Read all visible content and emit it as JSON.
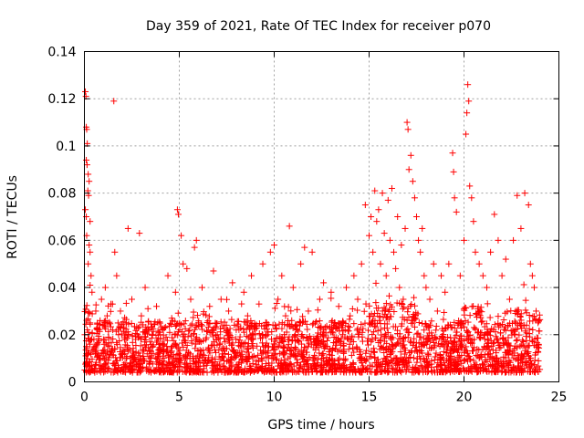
{
  "chart_data": {
    "type": "scatter",
    "title": "Day 359 of 2021, Rate Of TEC Index for receiver p070",
    "xlabel": "GPS time / hours",
    "ylabel": "ROTI / TECUs",
    "xlim": [
      0,
      25
    ],
    "ylim": [
      0,
      0.14
    ],
    "xticks": [
      0,
      5,
      10,
      15,
      20,
      25
    ],
    "xtick_labels": [
      "0",
      "5",
      "10",
      "15",
      "20",
      "25"
    ],
    "yticks": [
      0,
      0.02,
      0.04,
      0.06,
      0.08,
      0.1,
      0.12,
      0.14
    ],
    "ytick_labels": [
      "0",
      "0.02",
      "0.04",
      "0.06",
      "0.08",
      "0.1",
      "0.12",
      "0.14"
    ],
    "grid": true,
    "marker": "+",
    "color": "#ff0000",
    "series": [
      {
        "name": "ROTI",
        "points": [
          [
            0.05,
            0.123
          ],
          [
            0.08,
            0.121
          ],
          [
            0.1,
            0.108
          ],
          [
            0.12,
            0.107
          ],
          [
            0.15,
            0.101
          ],
          [
            0.1,
            0.094
          ],
          [
            0.14,
            0.092
          ],
          [
            0.2,
            0.088
          ],
          [
            0.25,
            0.085
          ],
          [
            0.18,
            0.081
          ],
          [
            0.22,
            0.079
          ],
          [
            0.05,
            0.073
          ],
          [
            0.1,
            0.07
          ],
          [
            0.3,
            0.068
          ],
          [
            0.12,
            0.062
          ],
          [
            0.25,
            0.058
          ],
          [
            0.3,
            0.055
          ],
          [
            0.2,
            0.05
          ],
          [
            0.35,
            0.045
          ],
          [
            0.3,
            0.041
          ],
          [
            0.4,
            0.038
          ],
          [
            0.02,
            0.02
          ],
          [
            0.1,
            0.015
          ],
          [
            0.2,
            0.012
          ],
          [
            0.3,
            0.025
          ],
          [
            0.5,
            0.018
          ],
          [
            0.6,
            0.03
          ],
          [
            0.7,
            0.022
          ],
          [
            0.8,
            0.01
          ],
          [
            0.9,
            0.035
          ],
          [
            1.0,
            0.012
          ],
          [
            1.1,
            0.04
          ],
          [
            1.2,
            0.028
          ],
          [
            1.3,
            0.015
          ],
          [
            1.4,
            0.033
          ],
          [
            1.55,
            0.119
          ],
          [
            1.6,
            0.055
          ],
          [
            1.7,
            0.045
          ],
          [
            1.8,
            0.02
          ],
          [
            1.9,
            0.03
          ],
          [
            2.0,
            0.012
          ],
          [
            2.2,
            0.025
          ],
          [
            2.3,
            0.065
          ],
          [
            2.5,
            0.035
          ],
          [
            2.7,
            0.018
          ],
          [
            2.9,
            0.063
          ],
          [
            3.0,
            0.028
          ],
          [
            3.2,
            0.04
          ],
          [
            3.4,
            0.022
          ],
          [
            3.6,
            0.015
          ],
          [
            3.8,
            0.032
          ],
          [
            4.0,
            0.02
          ],
          [
            4.2,
            0.01
          ],
          [
            4.4,
            0.045
          ],
          [
            4.6,
            0.027
          ],
          [
            4.8,
            0.038
          ],
          [
            4.9,
            0.073
          ],
          [
            4.95,
            0.071
          ],
          [
            5.1,
            0.062
          ],
          [
            5.2,
            0.05
          ],
          [
            5.4,
            0.048
          ],
          [
            5.6,
            0.035
          ],
          [
            5.8,
            0.057
          ],
          [
            5.9,
            0.06
          ],
          [
            6.0,
            0.025
          ],
          [
            6.2,
            0.04
          ],
          [
            6.4,
            0.018
          ],
          [
            6.6,
            0.032
          ],
          [
            6.8,
            0.047
          ],
          [
            7.0,
            0.02
          ],
          [
            7.2,
            0.035
          ],
          [
            7.4,
            0.012
          ],
          [
            7.6,
            0.03
          ],
          [
            7.8,
            0.042
          ],
          [
            8.0,
            0.022
          ],
          [
            8.2,
            0.015
          ],
          [
            8.4,
            0.038
          ],
          [
            8.6,
            0.028
          ],
          [
            8.8,
            0.045
          ],
          [
            9.0,
            0.02
          ],
          [
            9.2,
            0.033
          ],
          [
            9.4,
            0.05
          ],
          [
            9.6,
            0.025
          ],
          [
            9.8,
            0.055
          ],
          [
            10.0,
            0.058
          ],
          [
            10.2,
            0.035
          ],
          [
            10.4,
            0.045
          ],
          [
            10.6,
            0.028
          ],
          [
            10.8,
            0.066
          ],
          [
            11.0,
            0.04
          ],
          [
            11.2,
            0.022
          ],
          [
            11.4,
            0.05
          ],
          [
            11.6,
            0.057
          ],
          [
            11.8,
            0.03
          ],
          [
            12.0,
            0.055
          ],
          [
            12.2,
            0.018
          ],
          [
            12.4,
            0.035
          ],
          [
            12.6,
            0.042
          ],
          [
            12.8,
            0.015
          ],
          [
            13.0,
            0.038
          ],
          [
            13.2,
            0.025
          ],
          [
            13.4,
            0.032
          ],
          [
            13.6,
            0.02
          ],
          [
            13.8,
            0.04
          ],
          [
            14.0,
            0.028
          ],
          [
            14.2,
            0.045
          ],
          [
            14.4,
            0.035
          ],
          [
            14.6,
            0.05
          ],
          [
            14.8,
            0.075
          ],
          [
            15.0,
            0.062
          ],
          [
            15.1,
            0.07
          ],
          [
            15.2,
            0.055
          ],
          [
            15.3,
            0.081
          ],
          [
            15.4,
            0.068
          ],
          [
            15.5,
            0.073
          ],
          [
            15.6,
            0.05
          ],
          [
            15.7,
            0.08
          ],
          [
            15.8,
            0.063
          ],
          [
            15.9,
            0.045
          ],
          [
            16.0,
            0.077
          ],
          [
            16.1,
            0.06
          ],
          [
            16.2,
            0.082
          ],
          [
            16.3,
            0.055
          ],
          [
            16.4,
            0.048
          ],
          [
            16.5,
            0.07
          ],
          [
            16.6,
            0.04
          ],
          [
            16.7,
            0.058
          ],
          [
            16.8,
            0.035
          ],
          [
            16.9,
            0.065
          ],
          [
            17.0,
            0.11
          ],
          [
            17.05,
            0.107
          ],
          [
            17.1,
            0.09
          ],
          [
            17.2,
            0.096
          ],
          [
            17.3,
            0.085
          ],
          [
            17.4,
            0.078
          ],
          [
            17.5,
            0.07
          ],
          [
            17.6,
            0.06
          ],
          [
            17.7,
            0.055
          ],
          [
            17.8,
            0.065
          ],
          [
            17.9,
            0.045
          ],
          [
            18.0,
            0.04
          ],
          [
            18.2,
            0.035
          ],
          [
            18.4,
            0.05
          ],
          [
            18.6,
            0.03
          ],
          [
            18.8,
            0.045
          ],
          [
            19.0,
            0.038
          ],
          [
            19.2,
            0.05
          ],
          [
            19.4,
            0.097
          ],
          [
            19.45,
            0.089
          ],
          [
            19.5,
            0.078
          ],
          [
            19.6,
            0.072
          ],
          [
            19.8,
            0.045
          ],
          [
            20.0,
            0.06
          ],
          [
            20.1,
            0.105
          ],
          [
            20.15,
            0.114
          ],
          [
            20.2,
            0.126
          ],
          [
            20.25,
            0.119
          ],
          [
            20.3,
            0.083
          ],
          [
            20.4,
            0.078
          ],
          [
            20.5,
            0.068
          ],
          [
            20.6,
            0.055
          ],
          [
            20.8,
            0.05
          ],
          [
            21.0,
            0.045
          ],
          [
            21.2,
            0.04
          ],
          [
            21.4,
            0.055
          ],
          [
            21.6,
            0.071
          ],
          [
            21.8,
            0.06
          ],
          [
            22.0,
            0.045
          ],
          [
            22.2,
            0.052
          ],
          [
            22.4,
            0.035
          ],
          [
            22.6,
            0.06
          ],
          [
            22.8,
            0.079
          ],
          [
            23.0,
            0.065
          ],
          [
            23.2,
            0.08
          ],
          [
            23.4,
            0.075
          ],
          [
            23.5,
            0.05
          ],
          [
            23.6,
            0.045
          ],
          [
            23.7,
            0.04
          ],
          [
            23.8,
            0.03
          ],
          [
            23.9,
            0.025
          ]
        ],
        "baseline_band": {
          "x_range": [
            0,
            24
          ],
          "y_range": [
            0.004,
            0.045
          ],
          "description": "dense cloud of points spanning the full day"
        }
      }
    ]
  }
}
